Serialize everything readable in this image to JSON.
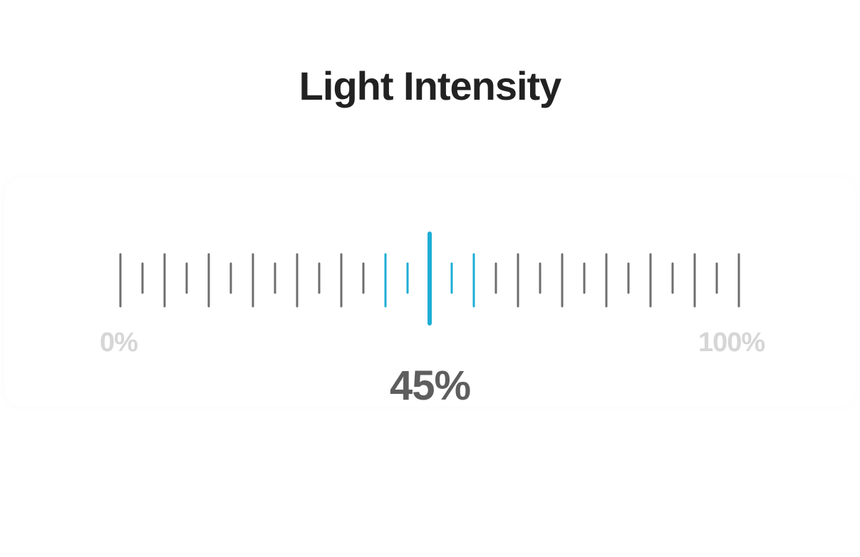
{
  "title": "Light Intensity",
  "slider": {
    "min_label": "0%",
    "max_label": "100%",
    "value": 45,
    "value_label": "45%",
    "tick_count": 29,
    "active_color": "#1eaed4",
    "tick_color": "#6e6e6e"
  }
}
